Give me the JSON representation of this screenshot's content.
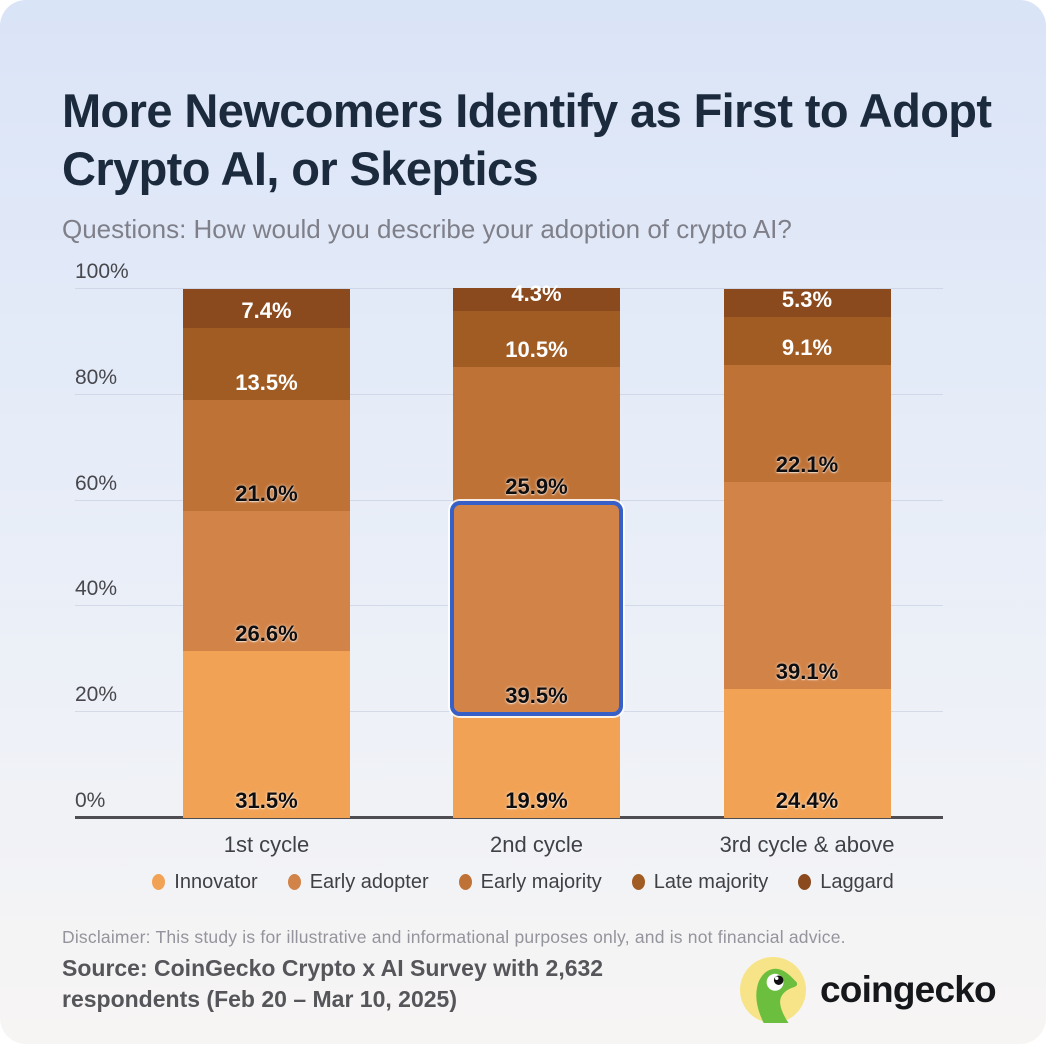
{
  "header": {
    "title": "More Newcomers Identify as First to Adopt Crypto AI, or Skeptics",
    "subtitle": "Questions: How would you describe your adoption of crypto AI?"
  },
  "chart_data": {
    "type": "bar",
    "subtype": "stacked-percentage",
    "title": "More Newcomers Identify as First to Adopt Crypto AI, or Skeptics",
    "categories": [
      "1st cycle",
      "2nd cycle",
      "3rd cycle & above"
    ],
    "series": [
      {
        "name": "Innovator",
        "color": "#F2A254",
        "value_label_color": "#0e0e10",
        "values": [
          31.5,
          19.9,
          24.4
        ]
      },
      {
        "name": "Early adopter",
        "color": "#D28347",
        "value_label_color": "#0e0e10",
        "values": [
          26.6,
          39.5,
          39.1
        ]
      },
      {
        "name": "Early majority",
        "color": "#BF7236",
        "value_label_color": "#0e0e10",
        "values": [
          21.0,
          25.9,
          22.1
        ]
      },
      {
        "name": "Late majority",
        "color": "#A15C24",
        "value_label_color": "#ffffff",
        "values": [
          13.5,
          10.5,
          9.1
        ]
      },
      {
        "name": "Laggard",
        "color": "#8A4A1E",
        "value_label_color": "#ffffff",
        "values": [
          7.4,
          4.3,
          5.3
        ]
      }
    ],
    "value_suffix": "%",
    "ylim": [
      0,
      100
    ],
    "yticks": [
      {
        "value": 0,
        "label": "0%"
      },
      {
        "value": 20,
        "label": "20%"
      },
      {
        "value": 40,
        "label": "40%"
      },
      {
        "value": 60,
        "label": "60%"
      },
      {
        "value": 80,
        "label": "80%"
      },
      {
        "value": 100,
        "label": "100%"
      }
    ],
    "grid": true,
    "legend_position": "bottom",
    "highlight": {
      "category_index": 1,
      "series_index": 1,
      "border_color": "#3660C8"
    }
  },
  "footer": {
    "disclaimer": "Disclaimer: This study is for illustrative and informational purposes only, and is not financial advice.",
    "source": "Source: CoinGecko Crypto x AI Survey with 2,632 respondents (Feb 20 – Mar 10, 2025)",
    "brand_name": "coingecko",
    "brand_colors": {
      "circle": "#F7E488",
      "gecko": "#6CBE3F"
    }
  }
}
